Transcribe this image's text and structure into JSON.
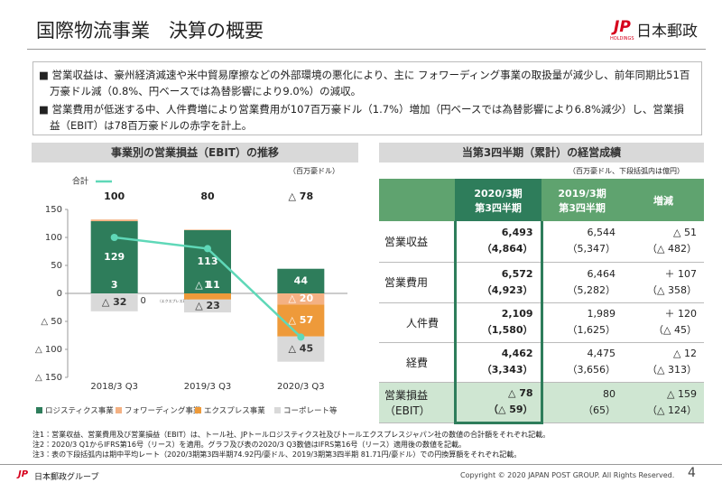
{
  "header": {
    "title": "国際物流事業　決算の概要",
    "logo_mark": "JP",
    "logo_sub": "HOLDINGS",
    "logo_text": "日本郵政"
  },
  "bullets": [
    "営業収益は、豪州経済減速や米中貿易摩擦などの外部環境の悪化により、主に フォワーディング事業の取扱量が減少し、前年同期比51百万豪ドル減（0.8%、円ベースでは為替影響により9.0%）の減収。",
    "営業費用が低迷する中、人件費増により営業費用が107百万豪ドル（1.7%）増加（円ベースでは為替影響により6.8%減少）し、営業損益（EBIT）は78百万豪ドルの赤字を計上。"
  ],
  "chart_data": {
    "type": "bar",
    "title": "事業別の営業損益（EBIT）の推移",
    "unit": "（百万豪ドル）",
    "annotation": "（エクスプレス事業）",
    "categories": [
      "2018/3 Q3",
      "2019/3 Q3",
      "2020/3 Q3"
    ],
    "series": [
      {
        "name": "ロジスティクス事業",
        "color": "#2e7d5b",
        "values": [
          129,
          113,
          44
        ]
      },
      {
        "name": "フォワーディング事業",
        "color": "#f4b183",
        "values": [
          3,
          1,
          -20
        ],
        "value_labels": [
          "3",
          "1",
          "△ 20"
        ]
      },
      {
        "name": "エクスプレス事業",
        "color": "#ee9a3a",
        "values": [
          0,
          -11,
          -57
        ],
        "value_labels": [
          "△ 0",
          "△ 11",
          "△ 57"
        ]
      },
      {
        "name": "コーポレート等",
        "color": "#d9d9d9",
        "values": [
          -32,
          -23,
          -45
        ],
        "value_labels": [
          "△ 32",
          "△ 23",
          "△ 45"
        ]
      }
    ],
    "line": {
      "name": "合計",
      "color": "#5fd8b8",
      "values": [
        100,
        80,
        -78
      ],
      "value_labels": [
        "100",
        "80",
        "△ 78"
      ]
    },
    "ylim": [
      -150,
      150
    ],
    "yticks": [
      {
        "value": -150,
        "label": "△ 150"
      },
      {
        "value": -100,
        "label": "△ 100"
      },
      {
        "value": -50,
        "label": "△ 50"
      },
      0,
      50,
      100,
      150
    ]
  },
  "table": {
    "title": "当第3四半期（累計）の経営成績",
    "unit": "（百万豪ドル、下段括弧内は億円）",
    "headers": [
      [
        "2020/3期",
        "第3四半期"
      ],
      [
        "2019/3期",
        "第3四半期"
      ],
      [
        "増減"
      ]
    ],
    "rows": [
      {
        "label": [
          "営業収益"
        ],
        "cells": [
          [
            "6,493",
            "（4,864）"
          ],
          [
            "6,544",
            "（5,347）"
          ],
          [
            "△ 51",
            "（△ 482）"
          ]
        ]
      },
      {
        "label": [
          "営業費用"
        ],
        "cells": [
          [
            "6,572",
            "（4,923）"
          ],
          [
            "6,464",
            "（5,282）"
          ],
          [
            "＋ 107",
            "（△ 358）"
          ]
        ]
      },
      {
        "label": [
          "人件費"
        ],
        "cells": [
          [
            "2,109",
            "（1,580）"
          ],
          [
            "1,989",
            "（1,625）"
          ],
          [
            "＋ 120",
            "（△ 45）"
          ]
        ]
      },
      {
        "label": [
          "経費"
        ],
        "cells": [
          [
            "4,462",
            "（3,343）"
          ],
          [
            "4,475",
            "（3,656）"
          ],
          [
            "△ 12",
            "（△ 313）"
          ]
        ]
      },
      {
        "label": [
          "営業損益",
          "（EBIT）"
        ],
        "cells": [
          [
            "△ 78",
            "（△ 59）"
          ],
          [
            "80",
            "（65）"
          ],
          [
            "△ 159",
            "（△ 124）"
          ]
        ]
      }
    ]
  },
  "notes": [
    "注1：営業収益、営業費用及び営業損益（EBIT）は、トール社、JPトールロジスティクス社及びトールエクスプレスジャパン社の数値の合計額をそれぞれ記載。",
    "注2：2020/3 Q1からIFRS第16号（リース）を適用。グラフ及び表の2020/3 Q3数値はIFRS第16号（リース）適用後の数値を記載。",
    "注3：表の下段括弧内は期中平均レート（2020/3期第3四半期74.92円/豪ドル、2019/3期第3四半期 81.71円/豪ドル）での円換算額をそれぞれ記載。"
  ],
  "footer": {
    "group": "日本郵政グループ",
    "copyright": "Copyright © 2020 JAPAN POST GROUP. All Rights Reserved.",
    "page": "4"
  }
}
